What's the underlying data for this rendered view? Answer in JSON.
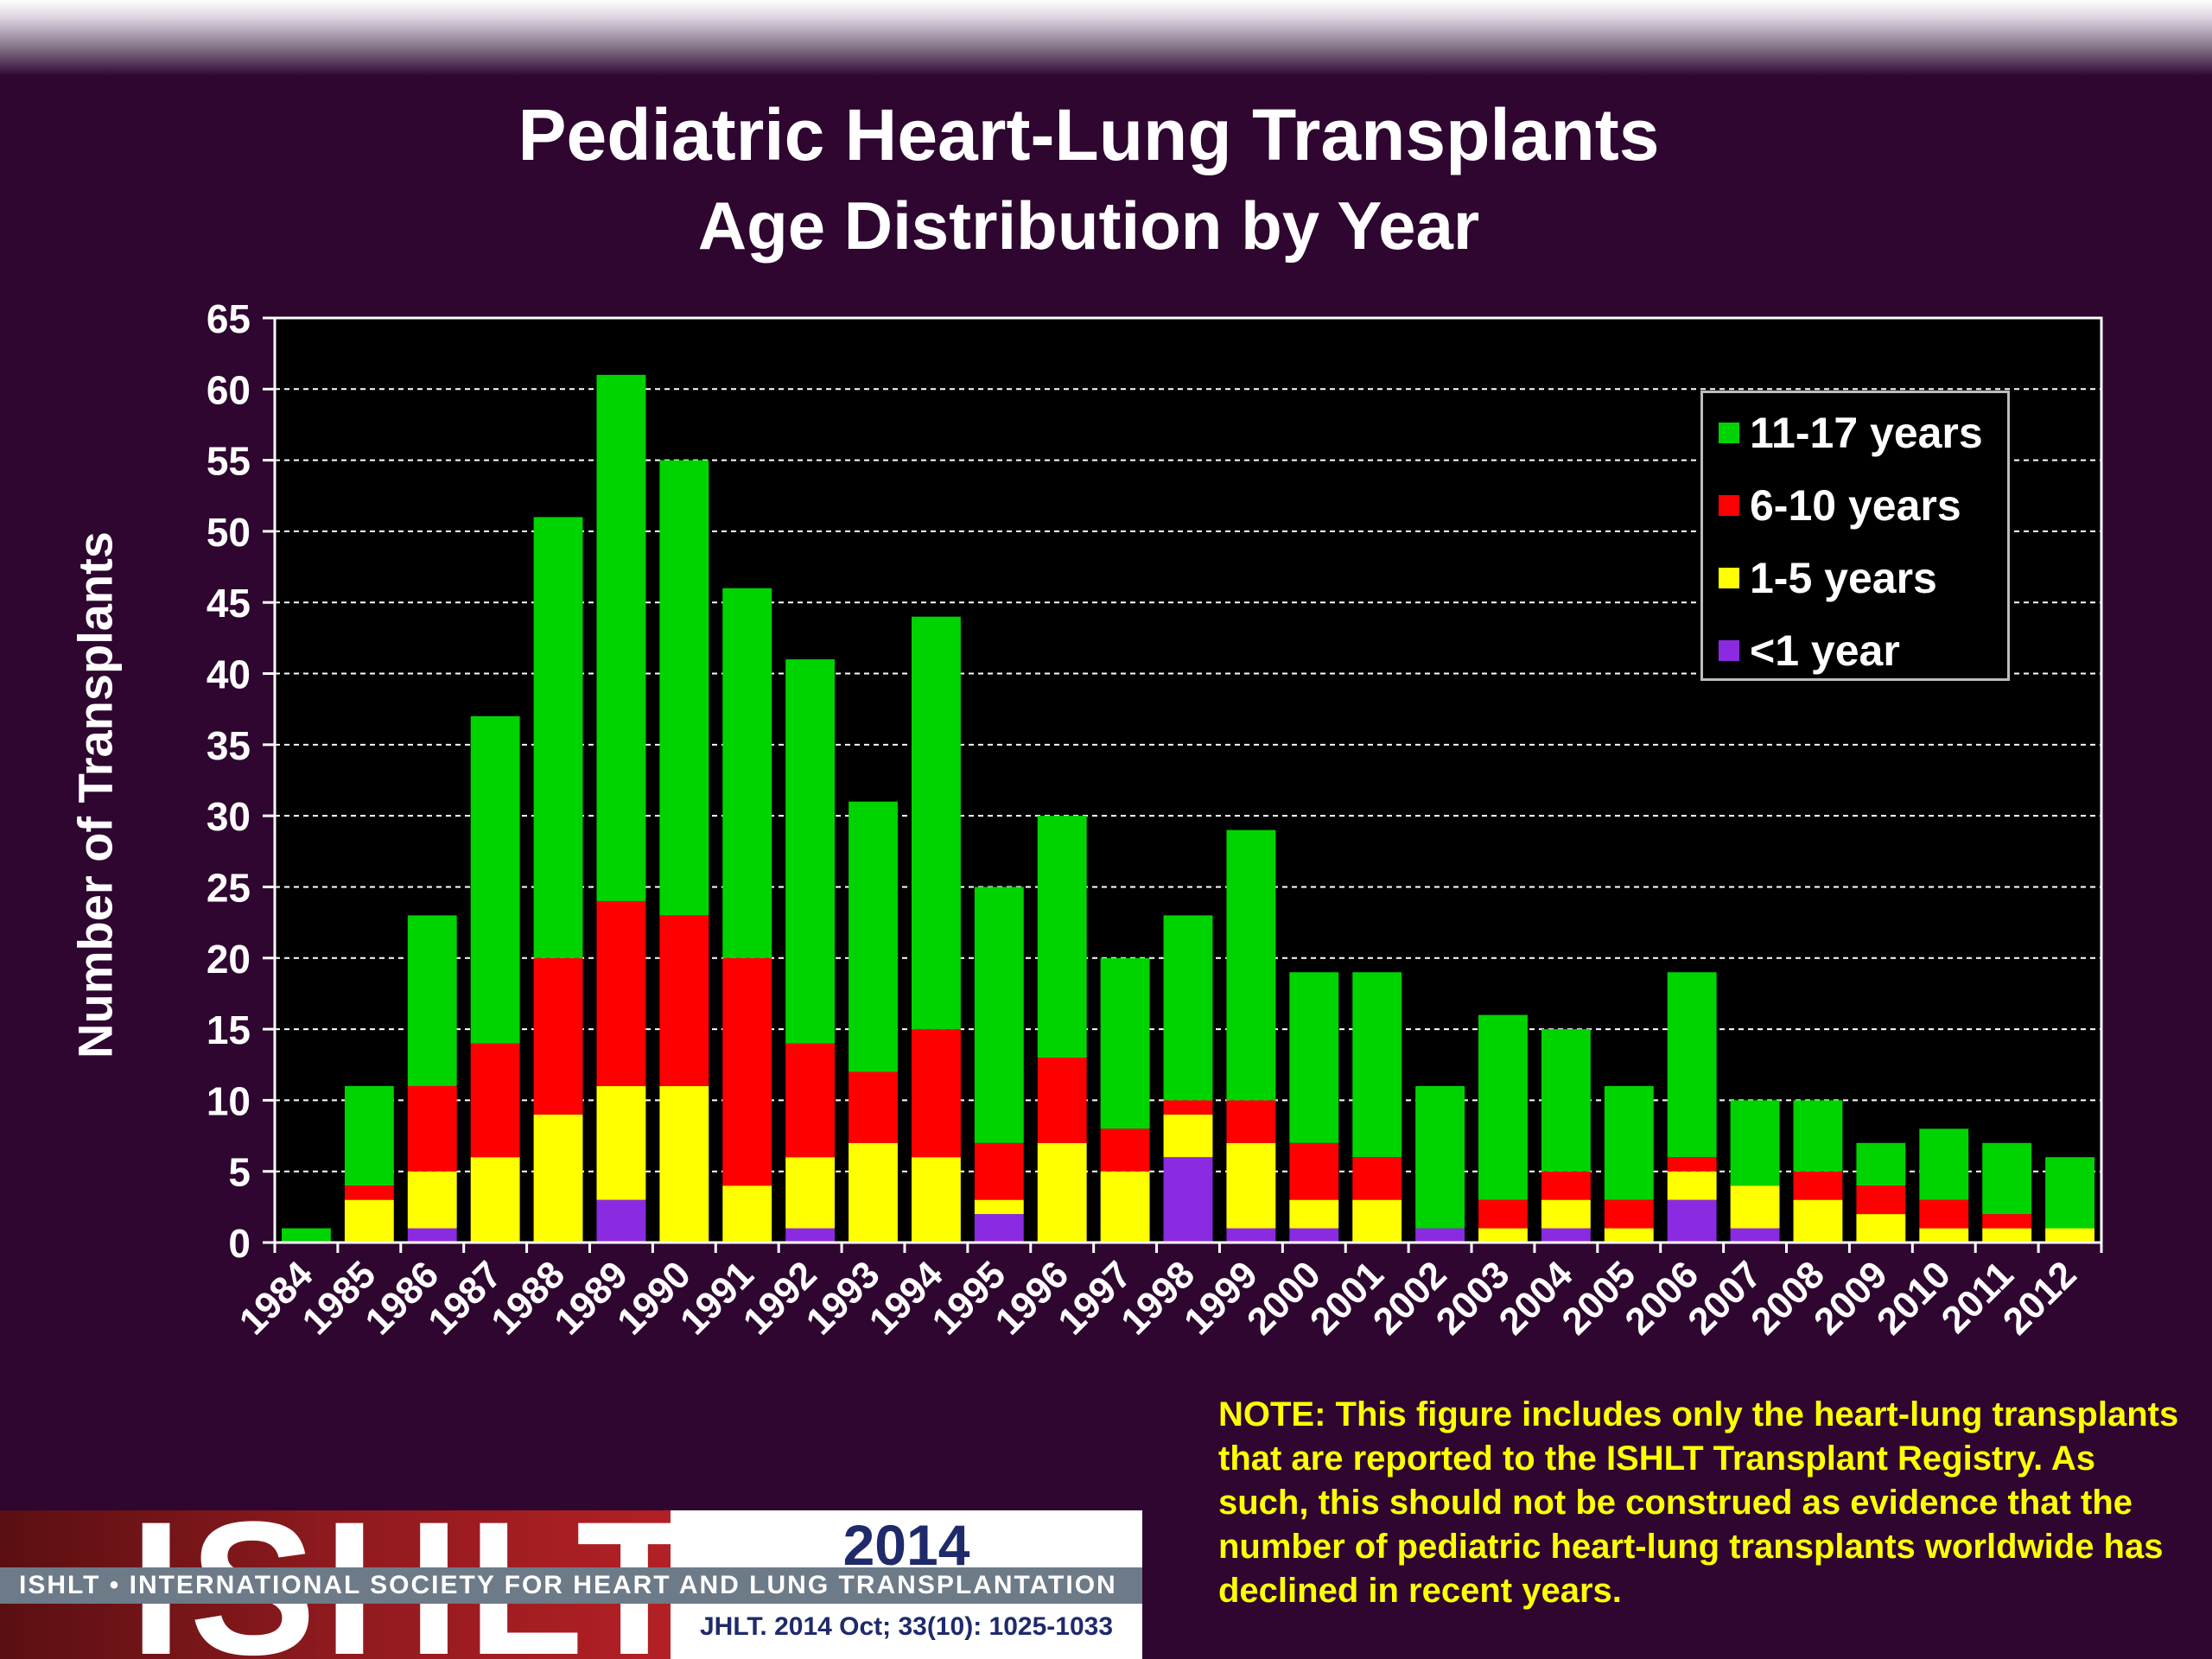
{
  "title": "Pediatric Heart-Lung Transplants",
  "subtitle": "Age Distribution by Year",
  "note": "NOTE: This figure includes only the heart-lung transplants that are reported to the ISHLT Transplant Registry.  As such, this should not be construed as evidence that the number of pediatric heart-lung transplants worldwide has declined in recent years.",
  "logo": {
    "letters": "ISHLT",
    "year": "2014",
    "society": "ISHLT • INTERNATIONAL SOCIETY FOR HEART AND LUNG TRANSPLANTATION",
    "citation": "JHLT. 2014 Oct; 33(10): 1025-1033"
  },
  "chart_data": {
    "type": "bar",
    "stacked": true,
    "title": "Pediatric Heart-Lung Transplants",
    "subtitle": "Age Distribution by Year",
    "xlabel": "",
    "ylabel": "Number of Transplants",
    "ylim": [
      0,
      65
    ],
    "yticks": [
      0,
      5,
      10,
      15,
      20,
      25,
      30,
      35,
      40,
      45,
      50,
      55,
      60,
      65
    ],
    "grid": true,
    "legend_position": "top-right",
    "categories": [
      "1984",
      "1985",
      "1986",
      "1987",
      "1988",
      "1989",
      "1990",
      "1991",
      "1992",
      "1993",
      "1994",
      "1995",
      "1996",
      "1997",
      "1998",
      "1999",
      "2000",
      "2001",
      "2002",
      "2003",
      "2004",
      "2005",
      "2006",
      "2007",
      "2008",
      "2009",
      "2010",
      "2011",
      "2012"
    ],
    "series": [
      {
        "name": "<1 year",
        "color": "#8a2be2",
        "values": [
          0,
          0,
          1,
          0,
          0,
          3,
          0,
          0,
          1,
          0,
          0,
          2,
          0,
          0,
          6,
          1,
          1,
          0,
          1,
          0,
          1,
          0,
          3,
          1,
          0,
          0,
          0,
          0,
          0
        ]
      },
      {
        "name": "1-5 years",
        "color": "#ffff00",
        "values": [
          0,
          3,
          4,
          6,
          9,
          8,
          11,
          4,
          5,
          7,
          6,
          1,
          7,
          5,
          3,
          6,
          2,
          3,
          0,
          1,
          2,
          1,
          2,
          3,
          3,
          2,
          1,
          1,
          1
        ]
      },
      {
        "name": "6-10 years",
        "color": "#ff0000",
        "values": [
          0,
          1,
          6,
          8,
          11,
          13,
          12,
          16,
          8,
          5,
          9,
          4,
          6,
          3,
          1,
          3,
          4,
          3,
          0,
          2,
          2,
          2,
          1,
          0,
          2,
          2,
          2,
          1,
          0
        ]
      },
      {
        "name": "11-17 years",
        "color": "#00d400",
        "values": [
          1,
          7,
          12,
          23,
          31,
          37,
          32,
          26,
          27,
          19,
          29,
          18,
          17,
          12,
          13,
          19,
          12,
          13,
          10,
          13,
          10,
          8,
          13,
          6,
          5,
          3,
          5,
          5,
          5
        ]
      }
    ],
    "legend_order": [
      "11-17 years",
      "6-10 years",
      "1-5 years",
      "<1 year"
    ]
  }
}
